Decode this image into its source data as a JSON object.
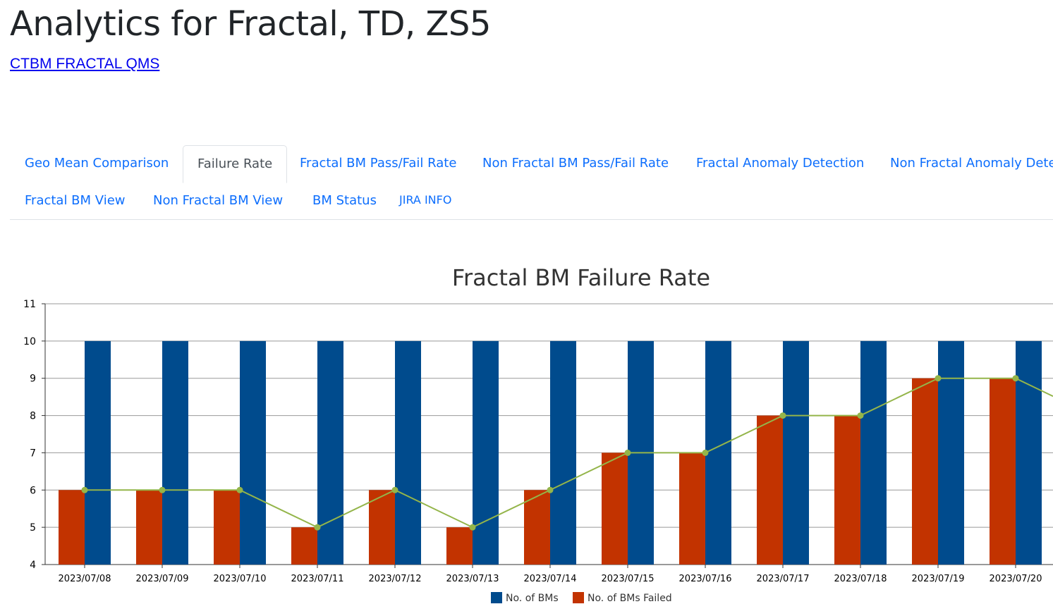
{
  "header": {
    "title": "Analytics for Fractal, TD, ZS5",
    "link": "CTBM FRACTAL QMS"
  },
  "tabs": [
    {
      "label": "Geo Mean Comparison",
      "active": false
    },
    {
      "label": "Failure Rate",
      "active": true
    },
    {
      "label": "Fractal BM Pass/Fail Rate",
      "active": false
    },
    {
      "label": "Non Fractal BM Pass/Fail Rate",
      "active": false
    },
    {
      "label": "Fractal Anomaly Detection",
      "active": false
    },
    {
      "label": "Non Fractal Anomaly Dete",
      "active": false
    },
    {
      "label": "Fractal BM View",
      "active": false
    },
    {
      "label": "Non Fractal BM View",
      "active": false
    },
    {
      "label": "BM Status",
      "active": false
    },
    {
      "label": "JIRA INFO",
      "active": false
    }
  ],
  "colors": {
    "total": "#004b8d",
    "failed": "#c23300",
    "line": "#94b54a",
    "tab_link": "#0d6efd"
  },
  "chart_data": {
    "type": "bar",
    "title": "Fractal BM Failure Rate",
    "categories": [
      "2023/07/08",
      "2023/07/09",
      "2023/07/10",
      "2023/07/11",
      "2023/07/12",
      "2023/07/13",
      "2023/07/14",
      "2023/07/15",
      "2023/07/16",
      "2023/07/17",
      "2023/07/18",
      "2023/07/19",
      "2023/07/20"
    ],
    "series": [
      {
        "name": "No. of BMs",
        "type": "bar",
        "values": [
          10,
          10,
          10,
          10,
          10,
          10,
          10,
          10,
          10,
          10,
          10,
          10,
          10
        ]
      },
      {
        "name": "No. of BMs Failed",
        "type": "bar",
        "values": [
          6,
          6,
          6,
          5,
          6,
          5,
          6,
          7,
          7,
          8,
          8,
          9,
          9
        ]
      },
      {
        "type": "line",
        "values": [
          6,
          6,
          6,
          5,
          6,
          5,
          6,
          7,
          7,
          8,
          8,
          9,
          9
        ]
      }
    ],
    "ylim": [
      4,
      11
    ],
    "yticks": [
      4,
      5,
      6,
      7,
      8,
      9,
      10,
      11
    ],
    "legend": "bottom",
    "grid": true
  }
}
